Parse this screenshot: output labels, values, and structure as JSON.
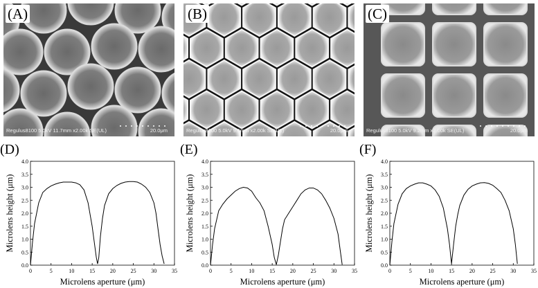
{
  "panels": {
    "a": {
      "label": "(A)",
      "meta": "Regulus8100 5.0kV 11.7mm x2.00k SE(UL)",
      "scale": "20.0μm"
    },
    "b": {
      "label": "(B)",
      "meta": "Regulus8100 5.0kV 9.6mm x2.00k SE(UL)",
      "scale": "20.0μm"
    },
    "c": {
      "label": "(C)",
      "meta": "Regulus8100 5.0kV 9.2mm x2.00k SE(UL)",
      "scale": "20.0μm"
    },
    "d": {
      "label": "(D)"
    },
    "e": {
      "label": "(E)"
    },
    "f": {
      "label": "(F)"
    }
  },
  "chart_data": [
    {
      "type": "line",
      "panel": "(D)",
      "xlabel": "Microlens aperture (μm)",
      "ylabel": "Microlens height (μm)",
      "xlim": [
        0,
        35
      ],
      "ylim": [
        0,
        4.0
      ],
      "xticks": [
        0,
        5,
        10,
        15,
        20,
        25,
        30,
        35
      ],
      "yticks": [
        0.0,
        0.5,
        1.0,
        1.5,
        2.0,
        2.5,
        3.0,
        3.5,
        4.0
      ],
      "series": [
        {
          "x": [
            0,
            0.5,
            1,
            2,
            3,
            4,
            5,
            6,
            7,
            8,
            9,
            10,
            11,
            12,
            13,
            14,
            15,
            15.5,
            16,
            16.3,
            16.6,
            17,
            17.5,
            18,
            19,
            20,
            21,
            22,
            23,
            24,
            25,
            26,
            27,
            28,
            29,
            30,
            30.5,
            31,
            31.5,
            32,
            32.5
          ],
          "y": [
            0,
            0.9,
            1.6,
            2.4,
            2.8,
            2.95,
            3.05,
            3.12,
            3.17,
            3.2,
            3.2,
            3.2,
            3.17,
            3.1,
            2.9,
            2.4,
            1.5,
            0.9,
            0.3,
            0.05,
            0.3,
            1.1,
            1.8,
            2.3,
            2.75,
            2.95,
            3.07,
            3.15,
            3.2,
            3.22,
            3.22,
            3.2,
            3.12,
            3.0,
            2.8,
            2.4,
            2.0,
            1.4,
            0.8,
            0.35,
            0.05
          ]
        }
      ]
    },
    {
      "type": "line",
      "panel": "(E)",
      "xlabel": "Microlens aperture (μm)",
      "ylabel": "Microlens height (μm)",
      "xlim": [
        0,
        35
      ],
      "ylim": [
        0,
        4.0
      ],
      "xticks": [
        0,
        5,
        10,
        15,
        20,
        25,
        30,
        35
      ],
      "yticks": [
        0.0,
        0.5,
        1.0,
        1.5,
        2.0,
        2.5,
        3.0,
        3.5,
        4.0
      ],
      "series": [
        {
          "x": [
            0,
            0.5,
            1,
            2,
            3,
            4,
            5,
            6,
            7,
            8,
            9,
            10,
            11,
            12,
            13,
            14,
            15,
            15.5,
            16,
            16.5,
            17,
            17.5,
            18,
            19,
            20,
            21,
            22,
            23,
            24,
            25,
            26,
            27,
            28,
            29,
            30,
            31,
            31.5,
            32
          ],
          "y": [
            0,
            0.8,
            1.4,
            2.1,
            2.35,
            2.55,
            2.7,
            2.85,
            2.95,
            3.0,
            2.97,
            2.85,
            2.6,
            2.4,
            2.1,
            1.5,
            0.8,
            0.3,
            0.02,
            0.4,
            0.9,
            1.4,
            1.75,
            2.0,
            2.25,
            2.5,
            2.75,
            2.9,
            2.97,
            2.97,
            2.9,
            2.75,
            2.5,
            2.2,
            1.8,
            1.2,
            0.6,
            0.02
          ]
        }
      ]
    },
    {
      "type": "line",
      "panel": "(F)",
      "xlabel": "Microlens aperture (μm)",
      "ylabel": "Microlens height (μm)",
      "xlim": [
        0,
        35
      ],
      "ylim": [
        0,
        4.0
      ],
      "xticks": [
        0,
        5,
        10,
        15,
        20,
        25,
        30,
        35
      ],
      "yticks": [
        0.0,
        0.5,
        1.0,
        1.5,
        2.0,
        2.5,
        3.0,
        3.5,
        4.0
      ],
      "series": [
        {
          "x": [
            0,
            0.5,
            1,
            2,
            3,
            4,
            5,
            6,
            7,
            8,
            9,
            10,
            11,
            12,
            13,
            14,
            14.5,
            15,
            15.5,
            16,
            16.5,
            17,
            18,
            19,
            20,
            21,
            22,
            23,
            24,
            25,
            26,
            27,
            28,
            29,
            30,
            30.5,
            31
          ],
          "y": [
            0,
            0.9,
            1.6,
            2.35,
            2.75,
            2.95,
            3.05,
            3.12,
            3.17,
            3.17,
            3.12,
            3.05,
            2.9,
            2.65,
            2.2,
            1.4,
            0.8,
            0.05,
            0.8,
            1.5,
            1.95,
            2.3,
            2.7,
            2.92,
            3.05,
            3.12,
            3.17,
            3.18,
            3.15,
            3.08,
            2.95,
            2.8,
            2.5,
            2.1,
            1.4,
            0.8,
            0.05
          ]
        }
      ]
    }
  ]
}
